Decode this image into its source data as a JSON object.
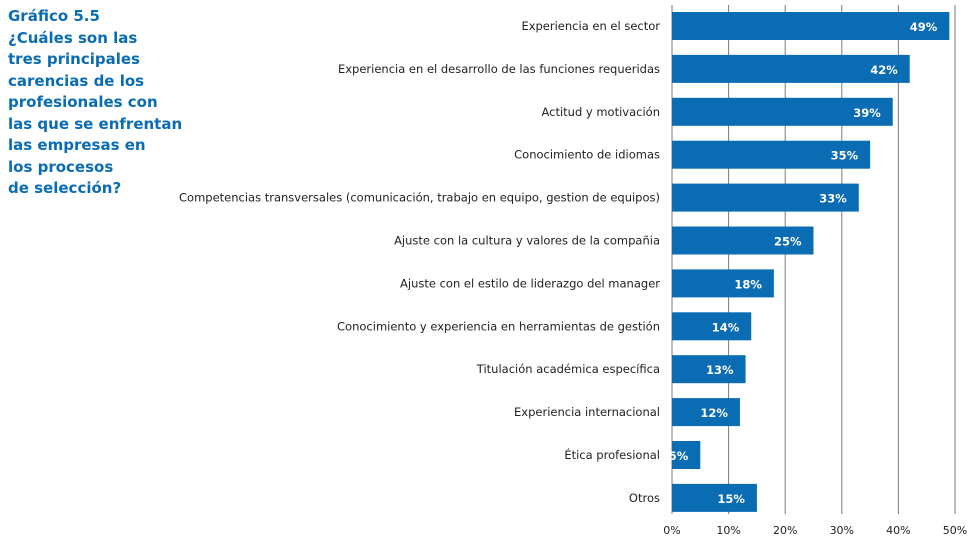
{
  "title_lines": [
    "Gráfico 5.5",
    "¿Cuáles son las",
    "tres principales",
    "carencias de los",
    "profesionales con",
    "las que se enfrentan",
    "las empresas en",
    "los procesos",
    "de selección?"
  ],
  "chart_data": {
    "type": "bar",
    "orientation": "horizontal",
    "title": "Gráfico 5.5 ¿Cuáles son las tres principales carencias de los profesionales con las que se enfrentan las empresas en los procesos de selección?",
    "categories": [
      "Experiencia en el sector",
      "Experiencia en el desarrollo de las funciones requeridas",
      "Actitud y motivación",
      "Conocimiento de idiomas",
      "Competencias transversales (comunicación, trabajo en equipo, gestion de equipos)",
      "Ajuste con la cultura y valores de la compañia",
      "Ajuste con el estilo de liderazgo del manager",
      "Conocimiento y experiencia en herramientas de gestión",
      "Titulación académica específica",
      "Experiencia internacional",
      "Ética profesional",
      "Otros"
    ],
    "values": [
      49,
      42,
      39,
      35,
      33,
      25,
      18,
      14,
      13,
      12,
      5,
      15
    ],
    "value_labels": [
      "49%",
      "42%",
      "39%",
      "35%",
      "33%",
      "25%",
      "18%",
      "14%",
      "13%",
      "12%",
      "5%",
      "15%"
    ],
    "xlim": [
      0,
      50
    ],
    "xticks": [
      0,
      10,
      20,
      30,
      40,
      50
    ],
    "xtick_labels": [
      "0%",
      "10%",
      "20%",
      "30%",
      "40%",
      "50%"
    ],
    "grid": "vertical",
    "bar_color": "#0a6cb3",
    "grid_color": "#7a7a7a",
    "title_color": "#0a6cb3"
  }
}
